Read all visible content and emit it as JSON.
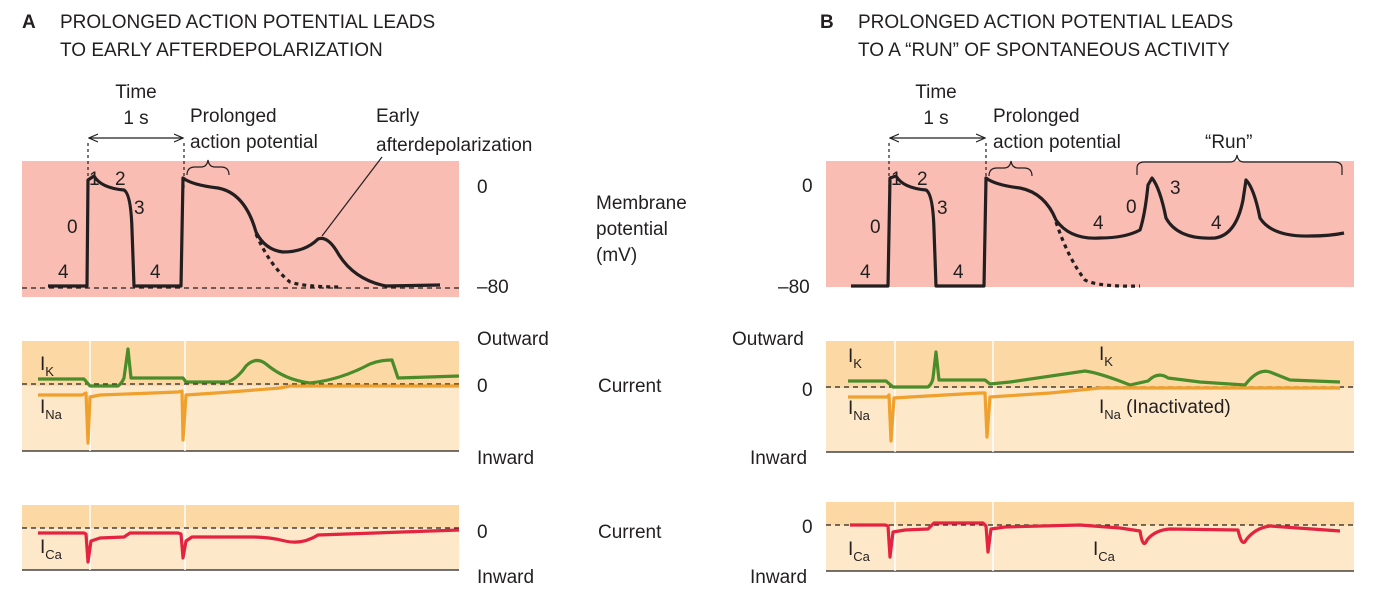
{
  "colors": {
    "membrane_bg": "#f9bdb3",
    "current_bg_top": "#fcd8a4",
    "current_bg_bottom": "#fde8c9",
    "ik": "#4a8c2a",
    "ina": "#f0a02c",
    "ica": "#e3233f",
    "trace": "#231f20"
  },
  "panel_a": {
    "letter": "A",
    "title_line1": "PROLONGED ACTION POTENTIAL LEADS",
    "title_line2": "TO EARLY AFTERDEPOLARIZATION",
    "time_label": "Time",
    "time_value": "1 s",
    "prolonged_line1": "Prolonged",
    "prolonged_line2": "action potential",
    "ead_line1": "Early",
    "ead_line2": "afterdepolarization",
    "phase_0": "0",
    "phase_1": "1",
    "phase_2": "2",
    "phase_3": "3",
    "phase_4a": "4",
    "phase_4b": "4",
    "mv_zero": "0",
    "mv_neg80": "–80",
    "outward": "Outward",
    "current_zero": "0",
    "inward": "Inward",
    "ca_zero": "0",
    "ca_inward": "Inward",
    "ik_main": "I",
    "ik_sub": "K",
    "ina_main": "I",
    "ina_sub": "Na",
    "ica_main": "I",
    "ica_sub": "Ca"
  },
  "middle": {
    "membrane_line1": "Membrane",
    "membrane_line2": "potential",
    "membrane_line3": "(mV)",
    "current_1": "Current",
    "current_2": "Current"
  },
  "panel_b": {
    "letter": "B",
    "title_line1": "PROLONGED ACTION POTENTIAL LEADS",
    "title_line2": "TO A “RUN” OF SPONTANEOUS ACTIVITY",
    "time_label": "Time",
    "time_value": "1 s",
    "prolonged_line1": "Prolonged",
    "prolonged_line2": "action potential",
    "run_label": "“Run”",
    "phase_0": "0",
    "phase_1": "1",
    "phase_2": "2",
    "phase_3": "3",
    "phase_4a": "4",
    "phase_4b": "4",
    "phase_4c": "4",
    "phase_0_run": "0",
    "phase_3_run": "3",
    "phase_4_run": "4",
    "mv_zero": "0",
    "mv_neg80": "–80",
    "outward": "Outward",
    "current_zero": "0",
    "inward": "Inward",
    "ca_zero": "0",
    "ca_inward": "Inward",
    "ik_main": "I",
    "ik_sub": "K",
    "ik2_main": "I",
    "ik2_sub": "K",
    "ina_main": "I",
    "ina_sub": "Na",
    "ina2_main": "I",
    "ina2_sub": "Na",
    "ina2_note": " (Inactivated)",
    "ica_main": "I",
    "ica_sub": "Ca",
    "ica2_main": "I",
    "ica2_sub": "Ca"
  }
}
